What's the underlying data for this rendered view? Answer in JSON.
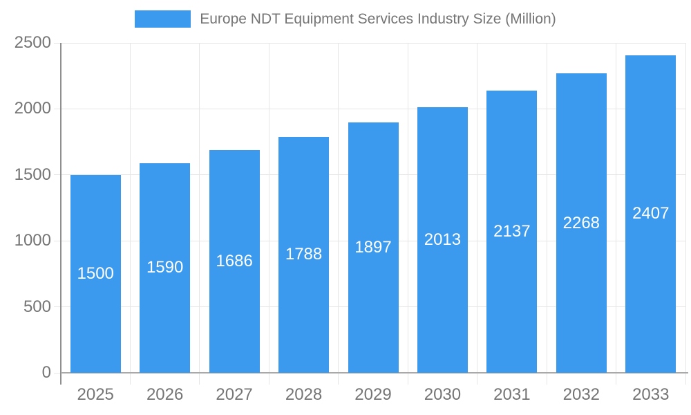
{
  "chart_data": {
    "type": "bar",
    "title": "Europe NDT Equipment Services Industry Size (Million)",
    "legend_entries": [
      "Europe NDT Equipment Services Industry Size (Million)"
    ],
    "legend_position": "top",
    "categories": [
      "2025",
      "2026",
      "2027",
      "2028",
      "2029",
      "2030",
      "2031",
      "2032",
      "2033"
    ],
    "values": [
      1500,
      1590,
      1686,
      1788,
      1897,
      2013,
      2137,
      2268,
      2407
    ],
    "value_labels": [
      "1500",
      "1590",
      "1686",
      "1788",
      "1897",
      "2013",
      "2137",
      "2268",
      "2407"
    ],
    "xlabel": "",
    "ylabel": "",
    "ylim": [
      0,
      2500
    ],
    "yticks": [
      0,
      500,
      1000,
      1500,
      2000,
      2500
    ],
    "ytick_labels": [
      "0",
      "500",
      "1000",
      "1500",
      "2000",
      "2500"
    ],
    "grid": "on",
    "colors": {
      "bar": "#3b99ee",
      "value_label": "#ffffff",
      "axis_text": "#757575",
      "gridline": "#e6e6e6",
      "y_axis_line": "#8f8f8f",
      "x_axis_line": "#a9a9a9",
      "background": "#ffffff"
    }
  }
}
